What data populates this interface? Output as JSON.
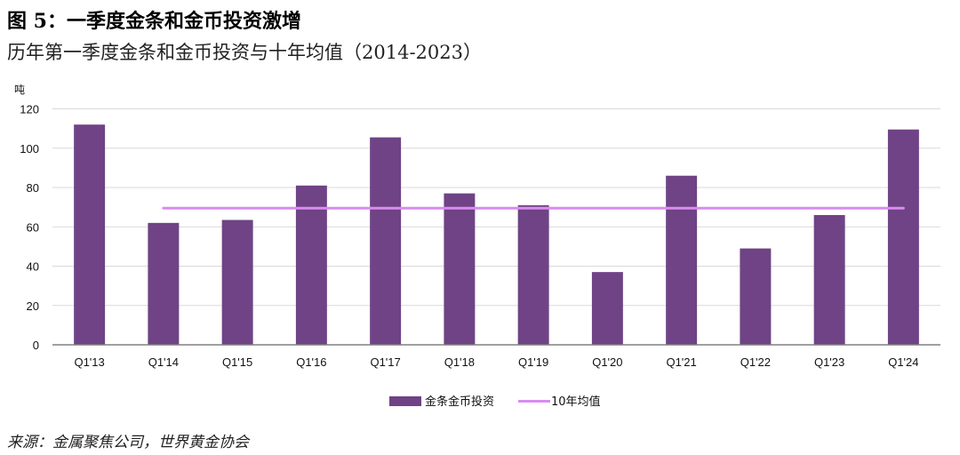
{
  "figure": {
    "title": "图 5：一季度金条和金币投资激增",
    "subtitle": "历年第一季度金条和金币投资与十年均值（2014-2023）",
    "source": "来源：金属聚焦公司，世界黄金协会"
  },
  "colors": {
    "bar": "#6f4385",
    "average_line": "#d98cf0",
    "grid": "#d9d9d9",
    "axis": "#808080"
  },
  "chart_data": {
    "type": "bar",
    "title": "历年第一季度金条和金币投资与十年均值（2014-2023）",
    "ylabel": "吨",
    "xlabel": "",
    "ylim": [
      0,
      120
    ],
    "yticks": [
      0,
      20,
      40,
      60,
      80,
      100,
      120
    ],
    "grid": true,
    "legend_position": "bottom",
    "categories": [
      "Q1'13",
      "Q1'14",
      "Q1'15",
      "Q1'16",
      "Q1'17",
      "Q1'18",
      "Q1'19",
      "Q1'20",
      "Q1'21",
      "Q1'22",
      "Q1'23",
      "Q1'24"
    ],
    "series": [
      {
        "name": "金条金币投资",
        "type": "bar",
        "values": [
          112,
          62,
          63.5,
          81,
          105.5,
          77,
          71,
          37,
          86,
          49,
          66,
          109.5
        ]
      },
      {
        "name": "10年均值",
        "type": "line",
        "value": 69.5,
        "from_category": "Q1'14",
        "to_category": "Q1'24"
      }
    ]
  }
}
